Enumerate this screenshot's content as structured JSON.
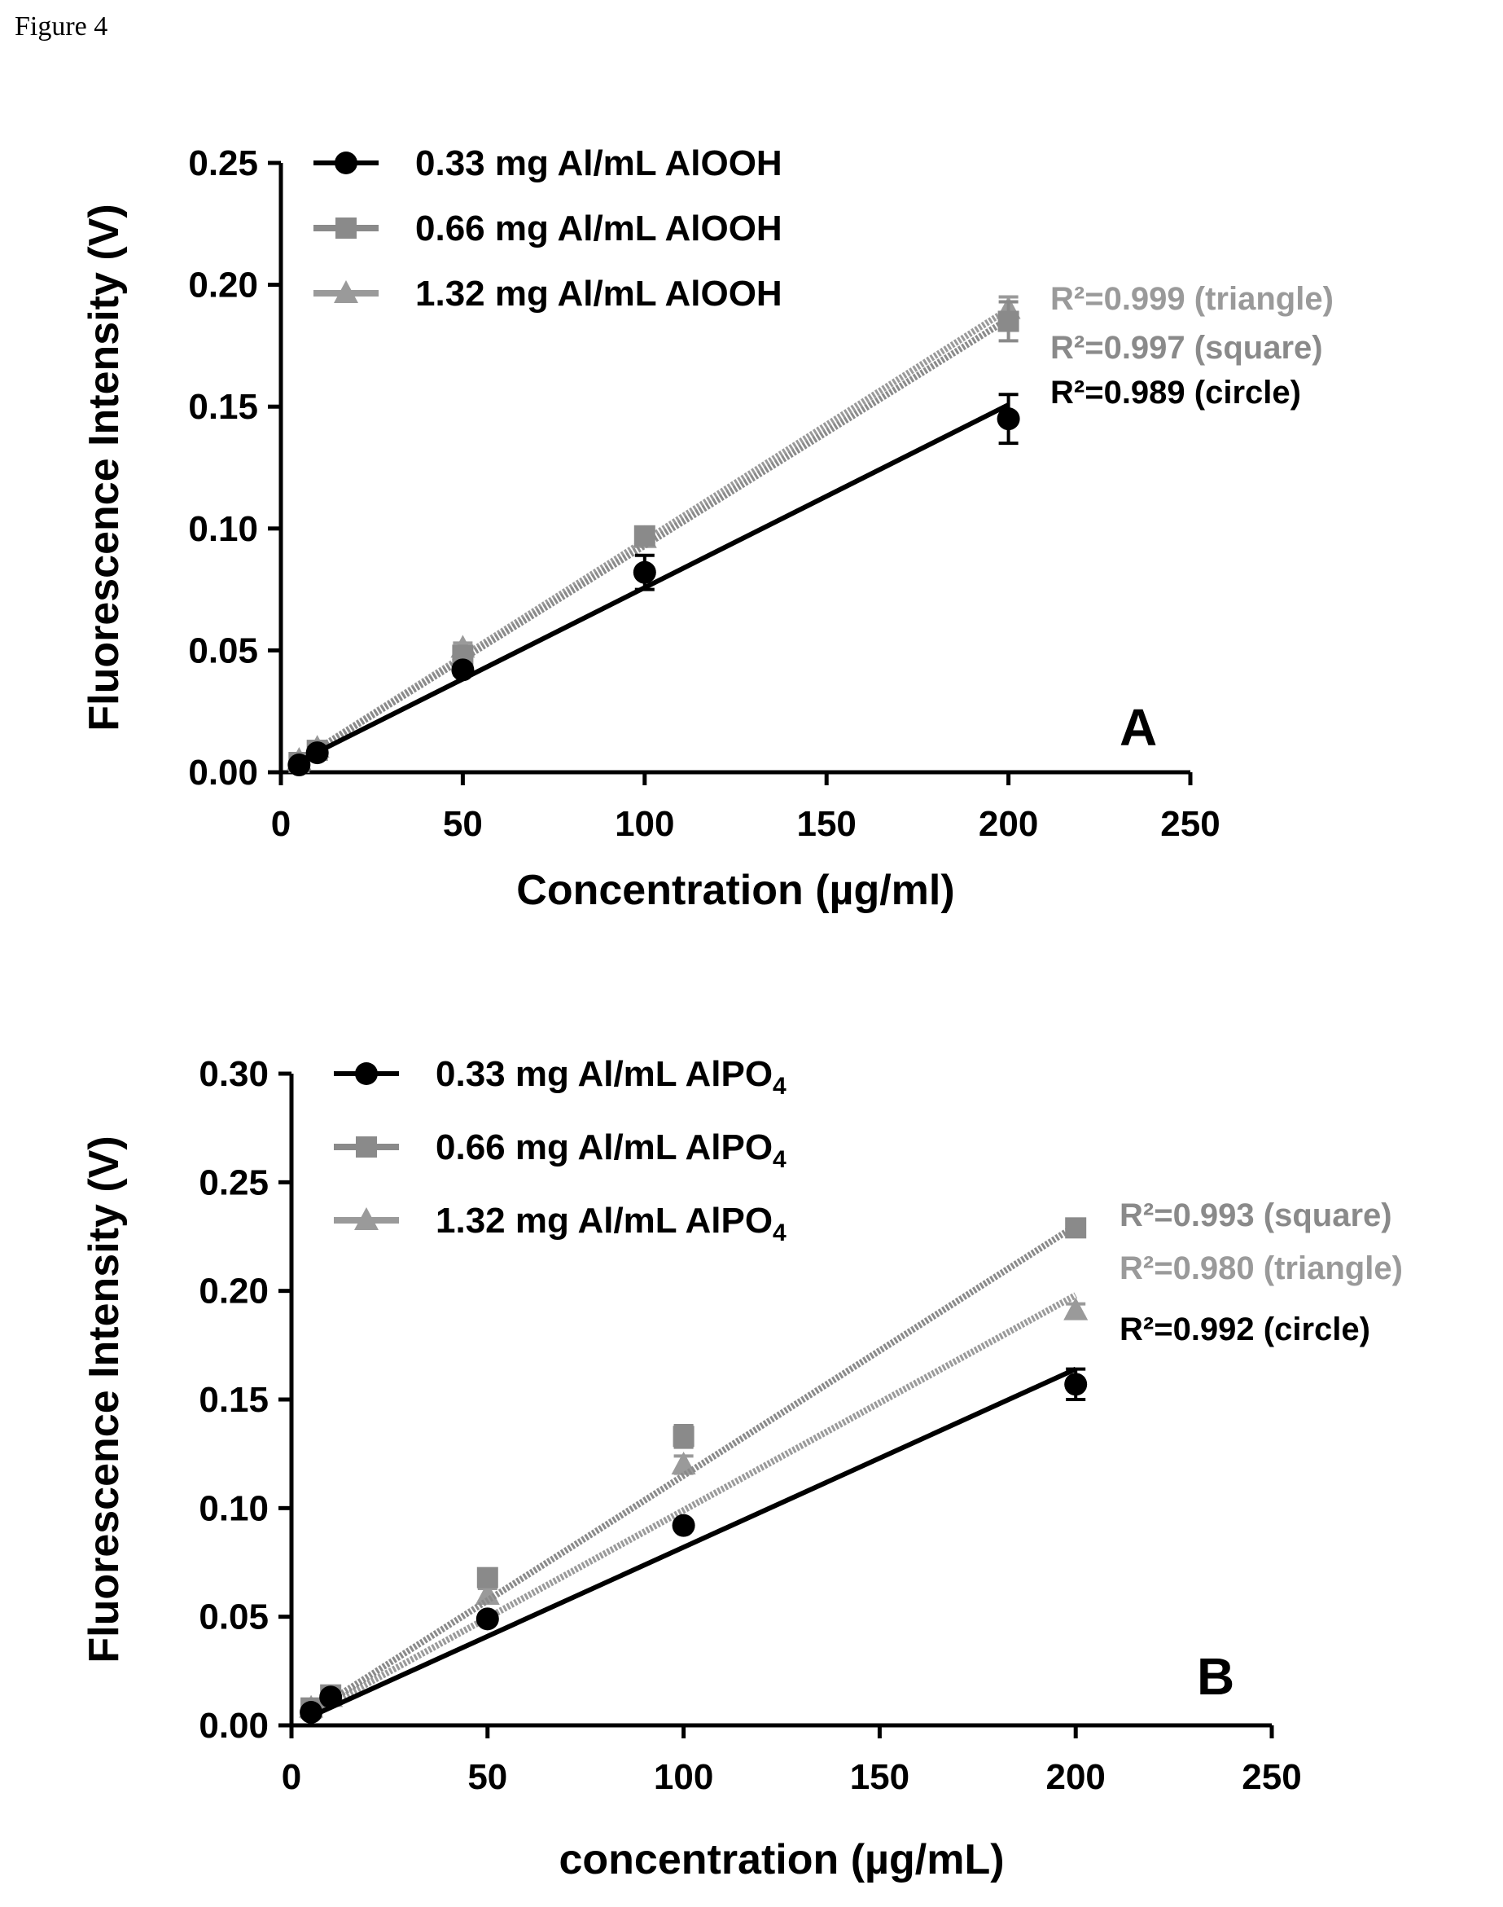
{
  "figure_label": "Figure 4",
  "chart_data": [
    {
      "type": "scatter",
      "panel": "A",
      "xlabel": "Concentration (µg/ml)",
      "ylabel": "Fluorescence Intensity (V)",
      "xlim": [
        0,
        250
      ],
      "ylim": [
        0,
        0.25
      ],
      "xticks": [
        0,
        50,
        100,
        150,
        200,
        250
      ],
      "yticks": [
        0.0,
        0.05,
        0.1,
        0.15,
        0.2,
        0.25
      ],
      "xtick_labels": [
        "0",
        "50",
        "100",
        "150",
        "200",
        "250"
      ],
      "ytick_labels": [
        "0.00",
        "0.05",
        "0.10",
        "0.15",
        "0.20",
        "0.25"
      ],
      "grid": false,
      "legend_position": "top-left",
      "series": [
        {
          "name": "0.33 mg Al/mL AlOOH",
          "marker": "circle",
          "color": "#000000",
          "x": [
            5,
            10,
            50,
            100,
            200
          ],
          "y": [
            0.003,
            0.008,
            0.042,
            0.082,
            0.145
          ],
          "err": [
            0.001,
            0.002,
            0.002,
            0.007,
            0.01
          ],
          "fit": [
            0.00075,
            0.00075
          ],
          "r2_label": "R²=0.989 (circle)"
        },
        {
          "name": "0.66 mg Al/mL AlOOH",
          "marker": "square",
          "color": "#8a8a8a",
          "x": [
            5,
            10,
            50,
            100,
            200
          ],
          "y": [
            0.004,
            0.009,
            0.048,
            0.097,
            0.185
          ],
          "err": [
            0.001,
            0.002,
            0.002,
            0.003,
            0.008
          ],
          "fit": [
            0.0,
            0.00093
          ],
          "r2_label": "R²=0.997 (square)"
        },
        {
          "name": "1.32 mg Al/mL AlOOH",
          "marker": "triangle",
          "color": "#9a9a9a",
          "x": [
            5,
            10,
            50,
            100,
            200
          ],
          "y": [
            0.005,
            0.01,
            0.051,
            0.096,
            0.19
          ],
          "err": [
            0.001,
            0.002,
            0.002,
            0.003,
            0.005
          ],
          "fit": [
            0.0,
            0.00095
          ],
          "r2_label": "R²=0.999 (triangle)"
        }
      ]
    },
    {
      "type": "scatter",
      "panel": "B",
      "xlabel": "concentration (µg/mL)",
      "ylabel": "Fluorescence Intensity (V)",
      "xlim": [
        0,
        250
      ],
      "ylim": [
        0,
        0.3
      ],
      "xticks": [
        0,
        50,
        100,
        150,
        200,
        250
      ],
      "yticks": [
        0.0,
        0.05,
        0.1,
        0.15,
        0.2,
        0.25,
        0.3
      ],
      "xtick_labels": [
        "0",
        "50",
        "100",
        "150",
        "200",
        "250"
      ],
      "ytick_labels": [
        "0.00",
        "0.05",
        "0.10",
        "0.15",
        "0.20",
        "0.25",
        "0.30"
      ],
      "grid": false,
      "legend_position": "top-left",
      "series": [
        {
          "name": "0.33 mg Al/mL AlPO4",
          "name_base": "0.33 mg Al/mL AlPO",
          "name_sub": "4",
          "marker": "circle",
          "color": "#000000",
          "x": [
            5,
            10,
            50,
            100,
            200
          ],
          "y": [
            0.006,
            0.013,
            0.049,
            0.092,
            0.157
          ],
          "err": [
            0.001,
            0.002,
            0.002,
            0.002,
            0.007
          ],
          "fit": [
            0.0,
            0.00082
          ],
          "r2_label": "R²=0.992 (circle)"
        },
        {
          "name": "0.66 mg Al/mL AlPO4",
          "name_base": "0.66 mg Al/mL AlPO",
          "name_sub": "4",
          "marker": "square",
          "color": "#8a8a8a",
          "x": [
            5,
            10,
            50,
            100,
            200
          ],
          "y": [
            0.008,
            0.014,
            0.068,
            0.133,
            0.229
          ],
          "err": [
            0.001,
            0.002,
            0.003,
            0.005,
            0.003
          ],
          "fit": [
            0.0,
            0.00115
          ],
          "r2_label": "R²=0.993 (square)"
        },
        {
          "name": "1.32 mg Al/mL AlPO4",
          "name_base": "1.32 mg Al/mL AlPO",
          "name_sub": "4",
          "marker": "triangle",
          "color": "#9a9a9a",
          "x": [
            5,
            10,
            50,
            100,
            200
          ],
          "y": [
            0.008,
            0.013,
            0.06,
            0.12,
            0.191
          ],
          "err": [
            0.001,
            0.002,
            0.003,
            0.004,
            0.003
          ],
          "fit": [
            0.0,
            0.00099
          ],
          "r2_label": "R²=0.980 (triangle)"
        }
      ]
    }
  ]
}
